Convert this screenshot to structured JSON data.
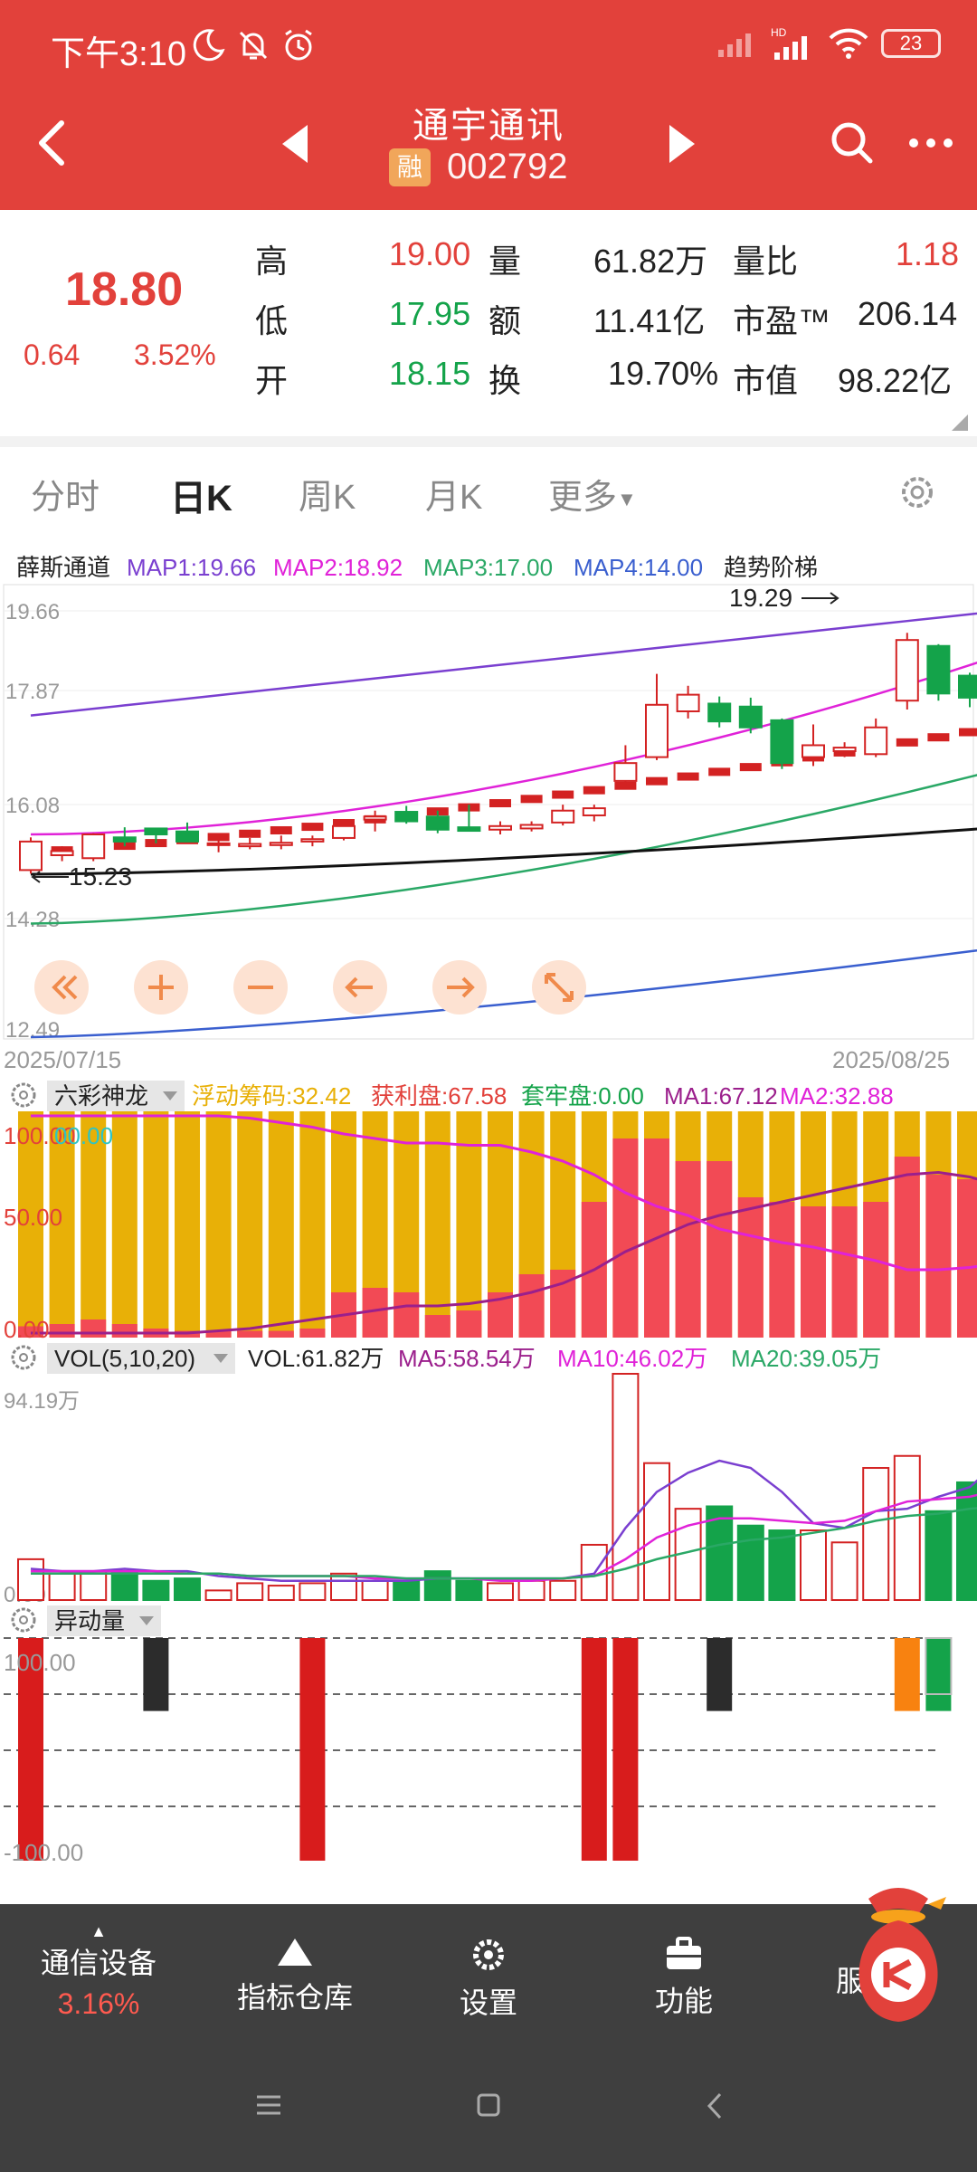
{
  "status_bar": {
    "time": "下午3:10",
    "battery": "23",
    "network": "HD"
  },
  "header": {
    "stock_name": "通宇通讯",
    "badge": "融",
    "stock_code": "002792"
  },
  "quote": {
    "price": "18.80",
    "change": "0.64",
    "change_pct": "3.52%",
    "rows": [
      {
        "l1": "高",
        "v1": "19.00",
        "l2": "量",
        "v2": "61.82万",
        "l3": "量比",
        "v3": "1.18"
      },
      {
        "l1": "低",
        "v1": "17.95",
        "l2": "额",
        "v2": "11.41亿",
        "l3": "市盈™",
        "v3": "206.14"
      },
      {
        "l1": "开",
        "v1": "18.15",
        "l2": "换",
        "v2": "19.70%",
        "l3": "市值",
        "v3": "98.22亿"
      }
    ]
  },
  "tabs": [
    "分时",
    "日K",
    "周K",
    "月K",
    "更多"
  ],
  "active_tab": "日K",
  "main_chart": {
    "indicator_name": "薛斯通道",
    "map1": "MAP1:19.66",
    "map2": "MAP2:18.92",
    "map3": "MAP3:17.00",
    "map4": "MAP4:14.00",
    "trend_label": "趋势阶梯",
    "y_ticks": [
      "19.66",
      "17.87",
      "16.08",
      "14.28",
      "12.49"
    ],
    "high_marker": "19.29",
    "low_marker": "15.23",
    "date_start": "2025/07/15",
    "date_end": "2025/08/25"
  },
  "panel2": {
    "name": "六彩神龙",
    "float_chip": "浮动筹码:32.42",
    "profit": "获利盘:67.58",
    "trapped": "套牢盘:0.00",
    "ma1": "MA1:67.12",
    "ma2": "MA2:32.88",
    "y_top": "100.00",
    "y_top_overlap": "00.00",
    "y_mid": "50.00",
    "y_bottom": "0.00"
  },
  "panel3": {
    "name": "VOL(5,10,20)",
    "vol": "VOL:61.82万",
    "ma5": "MA5:58.54万",
    "ma10": "MA10:46.02万",
    "ma20": "MA20:39.05万",
    "y_top": "94.19万",
    "y_bottom": "0.00"
  },
  "panel4": {
    "name": "异动量",
    "y_top": "100.00",
    "y_bottom": "-100.00"
  },
  "toolbar": {
    "sector_name": "通信设备",
    "sector_change": "3.16%",
    "items": [
      "指标仓库",
      "设置",
      "功能"
    ],
    "last_label": "服"
  },
  "colors": {
    "brand_red": "#e2413b",
    "up": "#d32222",
    "down": "#14a34a",
    "map1": "#7a3fd0",
    "map2": "#e022d8",
    "map3": "#2aa866",
    "map4": "#3a5fcf",
    "chip_gold": "#e8b007"
  },
  "chart_data": [
    {
      "type": "candlestick",
      "title": "薛斯通道",
      "x_range": [
        "2025/07/15",
        "2025/08/25"
      ],
      "ylim": [
        12.49,
        19.66
      ],
      "candles": [
        {
          "o": 15.3,
          "h": 15.85,
          "l": 15.24,
          "c": 15.78
        },
        {
          "o": 15.55,
          "h": 15.7,
          "l": 15.45,
          "c": 15.62
        },
        {
          "o": 15.5,
          "h": 15.92,
          "l": 15.45,
          "c": 15.9
        },
        {
          "o": 15.85,
          "h": 16.02,
          "l": 15.7,
          "c": 15.78
        },
        {
          "o": 16.0,
          "h": 16.0,
          "l": 15.75,
          "c": 15.9
        },
        {
          "o": 15.95,
          "h": 16.1,
          "l": 15.8,
          "c": 15.78
        },
        {
          "o": 15.72,
          "h": 15.84,
          "l": 15.6,
          "c": 15.75
        },
        {
          "o": 15.7,
          "h": 15.84,
          "l": 15.65,
          "c": 15.74
        },
        {
          "o": 15.72,
          "h": 15.88,
          "l": 15.65,
          "c": 15.76
        },
        {
          "o": 15.78,
          "h": 15.88,
          "l": 15.7,
          "c": 15.82
        },
        {
          "o": 15.84,
          "h": 16.08,
          "l": 15.8,
          "c": 16.04
        },
        {
          "o": 16.15,
          "h": 16.3,
          "l": 15.95,
          "c": 16.2
        },
        {
          "o": 16.28,
          "h": 16.38,
          "l": 16.08,
          "c": 16.12
        },
        {
          "o": 16.2,
          "h": 16.3,
          "l": 15.92,
          "c": 15.98
        },
        {
          "o": 16.02,
          "h": 16.4,
          "l": 15.95,
          "c": 15.96
        },
        {
          "o": 15.98,
          "h": 16.12,
          "l": 15.9,
          "c": 16.04
        },
        {
          "o": 16.0,
          "h": 16.12,
          "l": 15.95,
          "c": 16.06
        },
        {
          "o": 16.1,
          "h": 16.4,
          "l": 16.05,
          "c": 16.3
        },
        {
          "o": 16.22,
          "h": 16.4,
          "l": 16.12,
          "c": 16.34
        },
        {
          "o": 16.8,
          "h": 17.4,
          "l": 16.7,
          "c": 17.1
        },
        {
          "o": 17.2,
          "h": 18.6,
          "l": 17.15,
          "c": 18.08
        },
        {
          "o": 17.97,
          "h": 18.4,
          "l": 17.85,
          "c": 18.25
        },
        {
          "o": 18.1,
          "h": 18.22,
          "l": 17.7,
          "c": 17.8
        },
        {
          "o": 18.05,
          "h": 18.2,
          "l": 17.6,
          "c": 17.7
        },
        {
          "o": 17.82,
          "h": 17.85,
          "l": 17.0,
          "c": 17.1
        },
        {
          "o": 17.2,
          "h": 17.75,
          "l": 17.05,
          "c": 17.4
        },
        {
          "o": 17.3,
          "h": 17.45,
          "l": 17.2,
          "c": 17.36
        },
        {
          "o": 17.25,
          "h": 17.85,
          "l": 17.2,
          "c": 17.7
        },
        {
          "o": 18.15,
          "h": 19.29,
          "l": 18.0,
          "c": 19.17
        },
        {
          "o": 19.07,
          "h": 19.1,
          "l": 18.15,
          "c": 18.27
        },
        {
          "o": 18.57,
          "h": 18.62,
          "l": 18.04,
          "c": 18.2
        },
        {
          "o": 18.15,
          "h": 19.0,
          "l": 17.95,
          "c": 18.8
        }
      ],
      "series": [
        {
          "name": "MAP1",
          "values": [
            17.9,
            19.66
          ]
        },
        {
          "name": "MAP2",
          "values": [
            15.9,
            18.92
          ]
        },
        {
          "name": "MAP3",
          "values": [
            14.4,
            17.0
          ]
        },
        {
          "name": "MAP4",
          "values": [
            12.49,
            14.0
          ]
        }
      ]
    },
    {
      "type": "bar",
      "title": "六彩神龙",
      "ylim": [
        0,
        100
      ],
      "series": [
        {
          "name": "获利盘",
          "values": [
            5,
            6,
            8,
            6,
            4,
            3,
            3,
            3,
            3,
            4,
            20,
            22,
            20,
            10,
            12,
            20,
            28,
            30,
            60,
            88,
            88,
            78,
            78,
            62,
            60,
            58,
            58,
            60,
            80,
            72,
            70,
            67.58
          ]
        },
        {
          "name": "MA1",
          "values": [
            2,
            2,
            2,
            2,
            2,
            2,
            3,
            4,
            6,
            8,
            10,
            12,
            14,
            14,
            15,
            17,
            20,
            24,
            30,
            38,
            44,
            50,
            54,
            57,
            60,
            63,
            66,
            69,
            72,
            73,
            71,
            67.12
          ]
        },
        {
          "name": "MA2",
          "values": [
            98,
            98,
            98,
            98,
            98,
            98,
            98,
            97,
            95,
            93,
            90,
            88,
            86,
            86,
            85,
            85,
            82,
            78,
            72,
            64,
            58,
            54,
            48,
            45,
            42,
            40,
            37,
            34,
            30,
            30,
            31,
            32.88
          ]
        }
      ]
    },
    {
      "type": "bar",
      "title": "VOL(5,10,20)",
      "ylim": [
        0,
        94.19
      ],
      "unit": "万",
      "series": [
        {
          "name": "VOL",
          "values": [
            17,
            11,
            12,
            12,
            8,
            9,
            4,
            7,
            6,
            7,
            11,
            8,
            8,
            12,
            8,
            7,
            8,
            8,
            23,
            94.19,
            57,
            38,
            39,
            31,
            29,
            29,
            24,
            55,
            60,
            37,
            49,
            61.82
          ]
        },
        {
          "name": "MA5",
          "values": [
            13,
            12,
            12,
            13,
            12,
            12,
            10,
            9,
            8,
            8,
            8,
            8,
            8,
            9,
            9,
            9,
            9,
            9,
            11,
            30,
            45,
            53,
            58,
            55,
            45,
            32,
            30,
            37,
            38,
            43,
            47,
            58.54
          ]
        },
        {
          "name": "MA10",
          "values": [
            12,
            12,
            12,
            12,
            12,
            11,
            11,
            10,
            10,
            10,
            10,
            9,
            9,
            9,
            9,
            8,
            8,
            9,
            10,
            17,
            26,
            31,
            34,
            34,
            33,
            32,
            33,
            37,
            41,
            42,
            43,
            46.02
          ]
        },
        {
          "name": "MA20",
          "values": [
            11,
            11,
            11,
            11,
            11,
            11,
            11,
            10,
            10,
            10,
            10,
            10,
            9,
            9,
            9,
            9,
            9,
            9,
            10,
            13,
            17,
            20,
            23,
            25,
            26,
            28,
            30,
            33,
            35,
            36,
            38,
            39.05
          ]
        }
      ]
    },
    {
      "type": "bar",
      "title": "异动量",
      "ylim": [
        -100,
        100
      ],
      "series": [
        {
          "name": "异动量",
          "values": [
            100,
            0,
            0,
            0,
            60,
            0,
            0,
            0,
            0,
            100,
            0,
            0,
            0,
            0,
            0,
            0,
            0,
            0,
            100,
            100,
            0,
            0,
            60,
            0,
            0,
            0,
            0,
            0,
            60,
            50,
            0,
            0
          ]
        }
      ]
    }
  ]
}
